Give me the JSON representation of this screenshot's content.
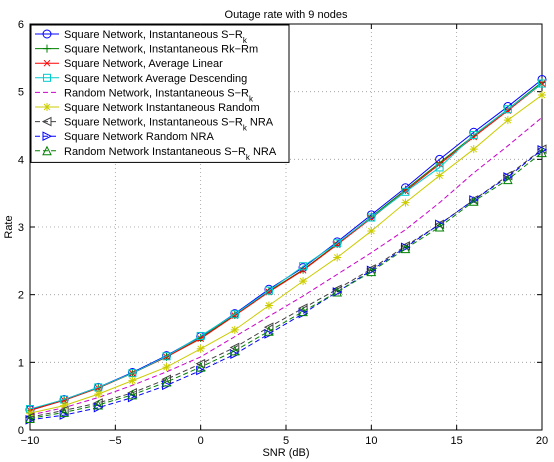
{
  "chart_data": {
    "type": "line",
    "title": "Outage rate with 9 nodes",
    "xlabel": "SNR (dB)",
    "ylabel": "Rate",
    "xlim": [
      -10,
      20
    ],
    "ylim": [
      0,
      6
    ],
    "xticks": [
      -10,
      -5,
      0,
      5,
      10,
      15,
      20
    ],
    "yticks": [
      0,
      1,
      2,
      3,
      4,
      5,
      6
    ],
    "grid": true,
    "legend_position": "top-left",
    "x": [
      -10,
      -8,
      -6,
      -4,
      -2,
      0,
      2,
      4,
      6,
      8,
      10,
      12,
      14,
      16,
      18,
      20
    ],
    "series": [
      {
        "name": "Square Network, Instantaneous S−R",
        "name_sub": "k",
        "name_after": "",
        "color": "#0000ff",
        "marker": "circle",
        "dash": false,
        "values": [
          0.3,
          0.45,
          0.63,
          0.85,
          1.1,
          1.38,
          1.72,
          2.08,
          2.4,
          2.78,
          3.18,
          3.58,
          4.0,
          4.4,
          4.78,
          5.18
        ]
      },
      {
        "name": "Square Network, Instantaneous Rk−Rm",
        "name_sub": "",
        "name_after": "",
        "color": "#008000",
        "marker": "plus",
        "dash": false,
        "values": [
          0.29,
          0.44,
          0.62,
          0.84,
          1.08,
          1.36,
          1.7,
          2.05,
          2.37,
          2.75,
          3.15,
          3.55,
          3.95,
          4.35,
          4.74,
          5.14
        ]
      },
      {
        "name": "Square Network, Average Linear",
        "name_sub": "",
        "name_after": "",
        "color": "#ff0000",
        "marker": "x",
        "dash": false,
        "values": [
          0.29,
          0.44,
          0.62,
          0.84,
          1.08,
          1.35,
          1.69,
          2.04,
          2.36,
          2.74,
          3.13,
          3.53,
          3.93,
          4.33,
          4.72,
          5.12
        ]
      },
      {
        "name": "Square Network Average Descending",
        "name_sub": "",
        "name_after": "",
        "color": "#00cccc",
        "marker": "square",
        "dash": false,
        "values": [
          0.31,
          0.45,
          0.63,
          0.84,
          1.09,
          1.39,
          1.71,
          2.06,
          2.42,
          2.76,
          3.14,
          3.52,
          3.88,
          4.36,
          4.74,
          5.12
        ]
      },
      {
        "name": "Random Network, Instantaneous S−R",
        "name_sub": "k",
        "name_after": "",
        "color": "#cc00cc",
        "marker": "none",
        "dash": true,
        "values": [
          0.22,
          0.33,
          0.48,
          0.66,
          0.86,
          1.08,
          1.38,
          1.68,
          1.98,
          2.3,
          2.62,
          2.96,
          3.36,
          3.8,
          4.2,
          4.62
        ]
      },
      {
        "name": "Square Network Instantaneous Random",
        "name_sub": "",
        "name_after": "",
        "color": "#cccc00",
        "marker": "star",
        "dash": false,
        "values": [
          0.25,
          0.36,
          0.53,
          0.73,
          0.93,
          1.2,
          1.48,
          1.84,
          2.2,
          2.55,
          2.94,
          3.36,
          3.76,
          4.15,
          4.58,
          4.95
        ]
      },
      {
        "name": "Square Network, Instantaneous S−R",
        "name_sub": "k",
        "name_after": " NRA",
        "color": "#404040",
        "marker": "triangle-left",
        "dash": true,
        "values": [
          0.19,
          0.29,
          0.4,
          0.55,
          0.75,
          0.98,
          1.22,
          1.52,
          1.8,
          2.08,
          2.38,
          2.72,
          3.04,
          3.4,
          3.76,
          4.15
        ]
      },
      {
        "name": "Square Network Random NRA",
        "name_sub": "",
        "name_after": "",
        "color": "#0000ff",
        "marker": "triangle-right",
        "dash": true,
        "values": [
          0.15,
          0.22,
          0.33,
          0.48,
          0.66,
          0.88,
          1.12,
          1.42,
          1.72,
          2.04,
          2.36,
          2.7,
          3.04,
          3.4,
          3.74,
          4.14
        ]
      },
      {
        "name": "Random Network Instantaneous S−R",
        "name_sub": "k",
        "name_after": " NRA",
        "color": "#008000",
        "marker": "triangle-up",
        "dash": true,
        "values": [
          0.17,
          0.26,
          0.37,
          0.52,
          0.71,
          0.93,
          1.17,
          1.46,
          1.75,
          2.04,
          2.34,
          2.68,
          3.0,
          3.38,
          3.7,
          4.1
        ]
      }
    ]
  }
}
